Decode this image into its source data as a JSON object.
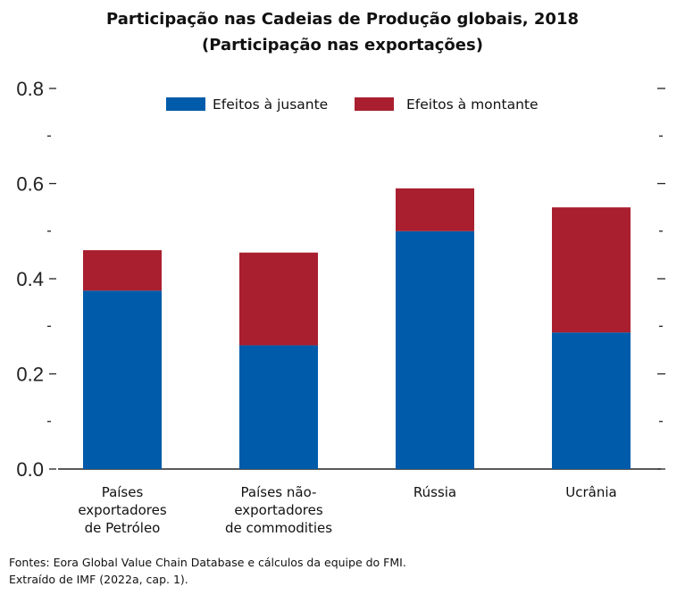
{
  "header": {
    "title": "Participação nas Cadeias de Produção globais, 2018",
    "subtitle": "(Participação nas exportações)"
  },
  "chart_data": {
    "type": "bar",
    "stacked": true,
    "categories": [
      "Países exportadores de Petróleo",
      "Países não-exportadores de commodities",
      "Rússia",
      "Ucrânia"
    ],
    "category_lines": [
      [
        "Países",
        "exportadores",
        "de Petróleo"
      ],
      [
        "Países não-",
        "exportadores",
        "de commodities"
      ],
      [
        "Rússia"
      ],
      [
        "Ucrânia"
      ]
    ],
    "series": [
      {
        "name": "Efeitos à jusante",
        "values": [
          0.375,
          0.26,
          0.5,
          0.287
        ],
        "color": "#005BAA"
      },
      {
        "name": "Efeitos à montante",
        "values": [
          0.085,
          0.195,
          0.09,
          0.263
        ],
        "color": "#A91F2F"
      }
    ],
    "ylim": [
      0,
      0.8
    ],
    "yticks": [
      "0.0",
      "0.2",
      "0.4",
      "0.6",
      "0.8"
    ],
    "legend_position": "top-center",
    "grid": false,
    "right_axis_ticks": true
  },
  "footer": {
    "source_line1": "Fontes: Eora Global Value Chain Database e cálculos da equipe do FMI.",
    "source_line2": "Extraído de IMF (2022a, cap. 1)."
  }
}
